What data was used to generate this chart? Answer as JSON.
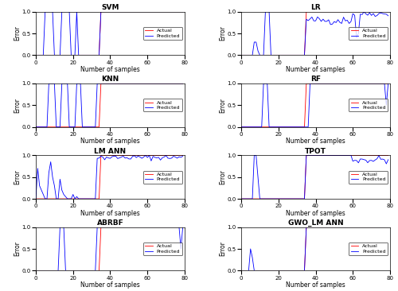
{
  "titles": [
    "SVM",
    "LR",
    "KNN",
    "RF",
    "LM ANN",
    "TPOT",
    "ABRBF",
    "GWO_LM ANN"
  ],
  "xlabel": "Number of samples",
  "ylabel": "Error",
  "xlim": [
    0,
    80
  ],
  "ylim": [
    0,
    1
  ],
  "actual_color": "#ff0000",
  "predicted_color": "#0000ff",
  "bg_color": "#ffffff",
  "figsize": [
    5.0,
    3.66
  ],
  "dpi": 100
}
